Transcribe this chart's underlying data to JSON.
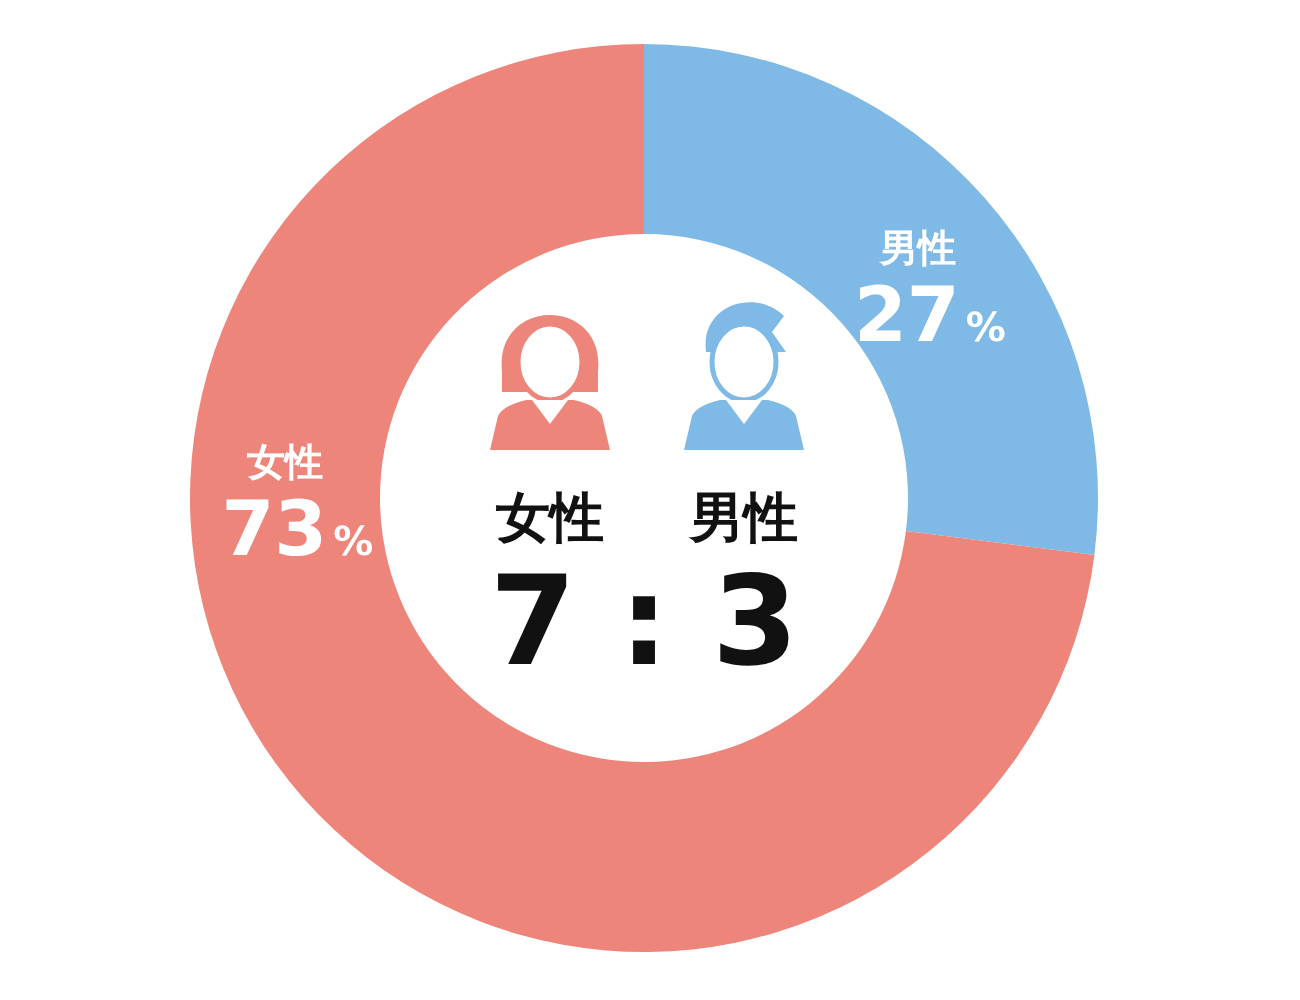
{
  "chart_data": {
    "type": "donut",
    "categories": [
      "男性",
      "女性"
    ],
    "values": [
      27,
      73
    ],
    "colors": [
      "#7fbae6",
      "#ee857b"
    ],
    "value_labels": [
      "27%",
      "73%"
    ],
    "annotations": [
      "女性",
      "男性",
      "7 : 3"
    ]
  }
}
